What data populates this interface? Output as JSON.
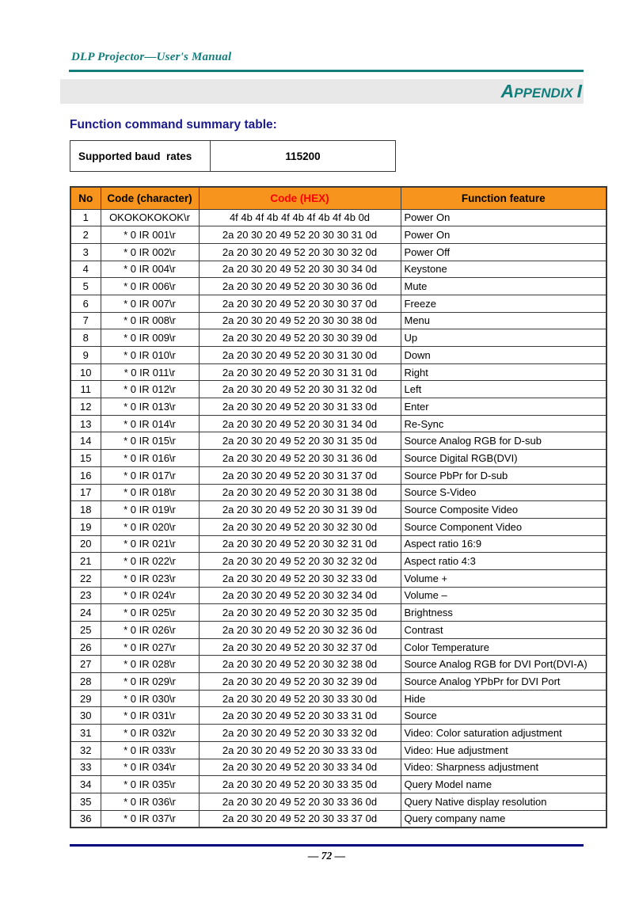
{
  "page_header": {
    "title": "DLP Projector—User's Manual"
  },
  "appendix_banner": {
    "lead_cap": "A",
    "small_caps": "PPENDIX ",
    "tail_cap": "I"
  },
  "section": {
    "title": "Function command summary table:"
  },
  "baud_table": {
    "label": "Supported baud  rates",
    "value": "115200"
  },
  "command_table": {
    "headers": [
      "No",
      "Code (character)",
      "Code (HEX)",
      "Function feature"
    ],
    "rows": [
      [
        "1",
        "OKOKOKOKOK\\r",
        "4f 4b 4f 4b 4f 4b 4f 4b 4f 4b 0d",
        "Power On"
      ],
      [
        "2",
        "* 0 IR 001\\r",
        "2a 20 30 20 49 52 20 30 30 31 0d",
        "Power On"
      ],
      [
        "3",
        "* 0 IR 002\\r",
        "2a 20 30 20 49 52 20 30 30 32 0d",
        "Power Off"
      ],
      [
        "4",
        "* 0 IR 004\\r",
        "2a 20 30 20 49 52 20 30 30 34 0d",
        "Keystone"
      ],
      [
        "5",
        "* 0 IR 006\\r",
        "2a 20 30 20 49 52 20 30 30 36 0d",
        "Mute"
      ],
      [
        "6",
        "* 0 IR 007\\r",
        "2a 20 30 20 49 52 20 30 30 37 0d",
        "Freeze"
      ],
      [
        "7",
        "* 0 IR 008\\r",
        "2a 20 30 20 49 52 20 30 30 38 0d",
        "Menu"
      ],
      [
        "8",
        "* 0 IR 009\\r",
        "2a 20 30 20 49 52 20 30 30 39 0d",
        "Up"
      ],
      [
        "9",
        "* 0 IR 010\\r",
        "2a 20 30 20 49 52 20 30 31 30 0d",
        "Down"
      ],
      [
        "10",
        "* 0 IR 011\\r",
        "2a 20 30 20 49 52 20 30 31 31 0d",
        "Right"
      ],
      [
        "11",
        "* 0 IR 012\\r",
        "2a 20 30 20 49 52 20 30 31 32 0d",
        "Left"
      ],
      [
        "12",
        "* 0 IR 013\\r",
        "2a 20 30 20 49 52 20 30 31 33 0d",
        "Enter"
      ],
      [
        "13",
        "* 0 IR 014\\r",
        "2a 20 30 20 49 52 20 30 31 34 0d",
        "Re-Sync"
      ],
      [
        "14",
        "* 0 IR 015\\r",
        "2a 20 30 20 49 52 20 30 31 35 0d",
        "Source Analog RGB for D-sub"
      ],
      [
        "15",
        "* 0 IR 016\\r",
        "2a 20 30 20 49 52 20 30 31 36 0d",
        "Source Digital RGB(DVI)"
      ],
      [
        "16",
        "* 0 IR 017\\r",
        "2a 20 30 20 49 52 20 30 31 37 0d",
        "Source PbPr for D-sub"
      ],
      [
        "17",
        "* 0 IR 018\\r",
        "2a 20 30 20 49 52 20 30 31 38 0d",
        "Source S-Video"
      ],
      [
        "18",
        "* 0 IR 019\\r",
        "2a 20 30 20 49 52 20 30 31 39 0d",
        "Source Composite Video"
      ],
      [
        "19",
        "* 0 IR 020\\r",
        "2a 20 30 20 49 52 20 30 32 30 0d",
        "Source Component Video"
      ],
      [
        "20",
        "* 0 IR 021\\r",
        "2a 20 30 20 49 52 20 30 32 31 0d",
        "Aspect ratio 16:9"
      ],
      [
        "21",
        "* 0 IR 022\\r",
        "2a 20 30 20 49 52 20 30 32 32 0d",
        "Aspect ratio 4:3"
      ],
      [
        "22",
        "* 0 IR 023\\r",
        "2a 20 30 20 49 52 20 30 32 33 0d",
        "Volume +"
      ],
      [
        "23",
        "* 0 IR 024\\r",
        "2a 20 30 20 49 52 20 30 32 34 0d",
        "Volume –"
      ],
      [
        "24",
        "* 0 IR 025\\r",
        "2a 20 30 20 49 52 20 30 32 35 0d",
        "Brightness"
      ],
      [
        "25",
        "* 0 IR 026\\r",
        "2a 20 30 20 49 52 20 30 32 36 0d",
        "Contrast"
      ],
      [
        "26",
        "* 0 IR 027\\r",
        "2a 20 30 20 49 52 20 30 32 37 0d",
        "Color Temperature"
      ],
      [
        "27",
        "* 0 IR 028\\r",
        "2a 20 30 20 49 52 20 30 32 38 0d",
        "Source Analog RGB for DVI Port(DVI-A)"
      ],
      [
        "28",
        "* 0 IR 029\\r",
        "2a 20 30 20 49 52 20 30 32 39 0d",
        "Source Analog YPbPr for DVI Port"
      ],
      [
        "29",
        "* 0 IR 030\\r",
        "2a 20 30 20 49 52 20 30 33 30 0d",
        "Hide"
      ],
      [
        "30",
        "* 0 IR 031\\r",
        "2a 20 30 20 49 52 20 30 33 31 0d",
        "Source"
      ],
      [
        "31",
        "* 0 IR 032\\r",
        "2a 20 30 20 49 52 20 30 33 32 0d",
        "Video: Color saturation adjustment"
      ],
      [
        "32",
        "* 0 IR 033\\r",
        "2a 20 30 20 49 52 20 30 33 33 0d",
        "Video: Hue adjustment"
      ],
      [
        "33",
        "* 0 IR 034\\r",
        "2a 20 30 20 49 52 20 30 33 34 0d",
        "Video: Sharpness adjustment"
      ],
      [
        "34",
        "* 0 IR 035\\r",
        "2a 20 30 20 49 52 20 30 33 35 0d",
        "Query Model name"
      ],
      [
        "35",
        "* 0 IR 036\\r",
        "2a 20 30 20 49 52 20 30 33 36 0d",
        "Query Native display resolution"
      ],
      [
        "36",
        "* 0 IR 037\\r",
        "2a 20 30 20 49 52 20 30 33 37 0d",
        "Query company name"
      ]
    ]
  },
  "footer": {
    "page_number": "— 72 —"
  },
  "colors": {
    "teal_accent": "#117E7C",
    "navy_title": "#1B1B8E",
    "footer_rule_navy": "#00007E",
    "table_header_orange": "#F7941E",
    "hex_header_red": "#FF0000",
    "banner_gray": "#E8E8E8"
  }
}
